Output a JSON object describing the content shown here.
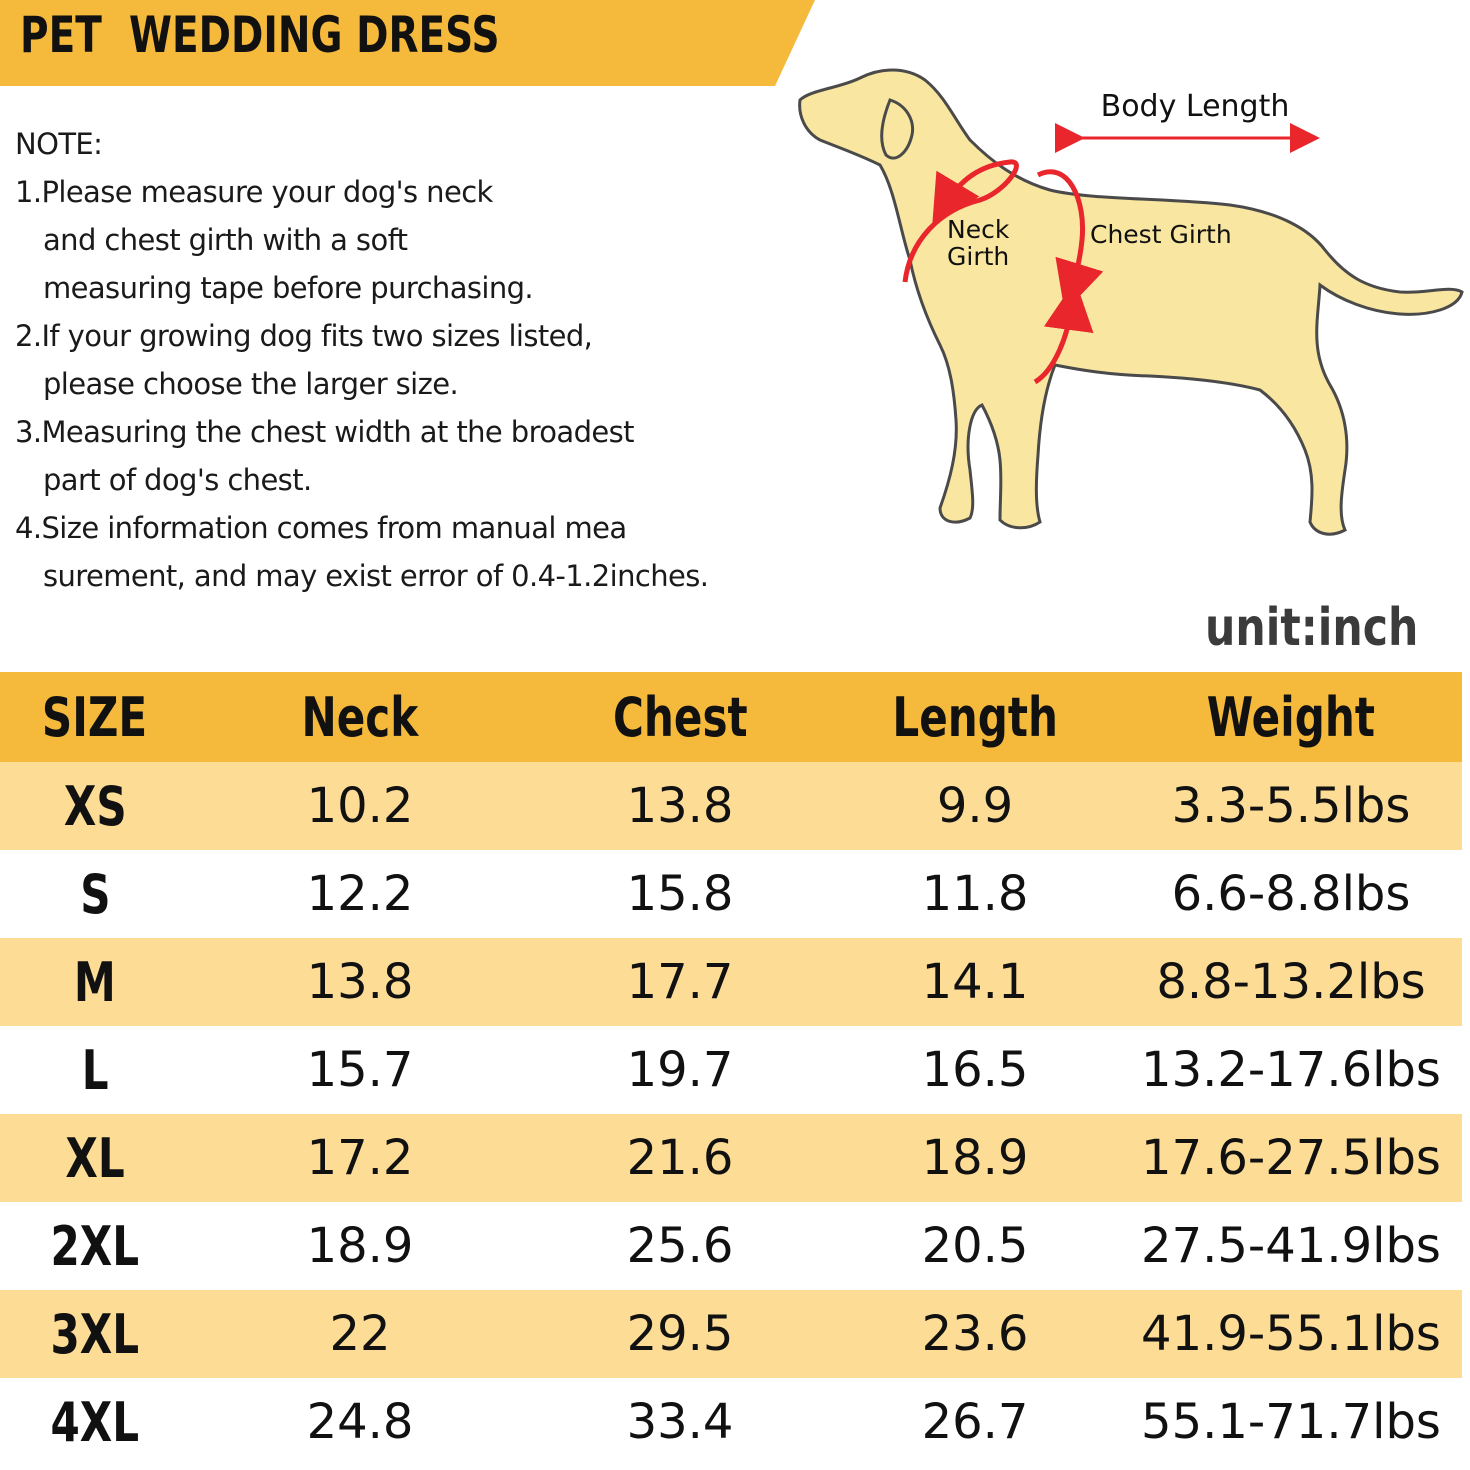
{
  "title": "PET  WEDDING DRESS",
  "notes": {
    "heading": "NOTE:",
    "lines": [
      "1.Please measure your dog's neck",
      "and chest girth with a soft",
      "measuring tape before purchasing.",
      "2.If your growing dog fits two sizes listed,",
      "please choose the larger size.",
      "3.Measuring the chest width at the broadest",
      "part of dog's chest.",
      "4.Size information comes from manual mea",
      "surement, and may exist error of 0.4-1.2inches."
    ]
  },
  "diagram": {
    "body_length": "Body Length",
    "neck": "Neck",
    "girth": "Girth",
    "chest_girth": "Chest Girth"
  },
  "unit": "unit:inch",
  "colors": {
    "header": "#F5B93C",
    "stripe": "#FDDC96",
    "dog": "#F9E6A0",
    "arrow": "#E8262B"
  },
  "table": {
    "headers": [
      "SIZE",
      "Neck",
      "Chest",
      "Length",
      "Weight"
    ],
    "rows": [
      [
        "XS",
        "10.2",
        "13.8",
        "9.9",
        "3.3-5.5lbs"
      ],
      [
        "S",
        "12.2",
        "15.8",
        "11.8",
        "6.6-8.8lbs"
      ],
      [
        "M",
        "13.8",
        "17.7",
        "14.1",
        "8.8-13.2lbs"
      ],
      [
        "L",
        "15.7",
        "19.7",
        "16.5",
        "13.2-17.6lbs"
      ],
      [
        "XL",
        "17.2",
        "21.6",
        "18.9",
        "17.6-27.5lbs"
      ],
      [
        "2XL",
        "18.9",
        "25.6",
        "20.5",
        "27.5-41.9lbs"
      ],
      [
        "3XL",
        "22",
        "29.5",
        "23.6",
        "41.9-55.1lbs"
      ],
      [
        "4XL",
        "24.8",
        "33.4",
        "26.7",
        "55.1-71.7lbs"
      ]
    ]
  }
}
